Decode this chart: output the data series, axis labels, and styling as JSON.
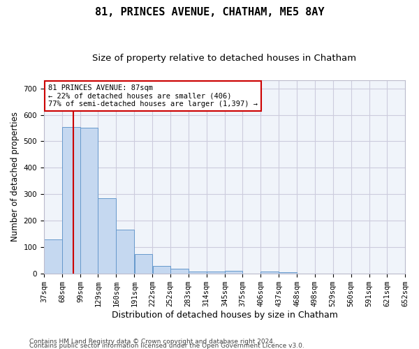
{
  "title": "81, PRINCES AVENUE, CHATHAM, ME5 8AY",
  "subtitle": "Size of property relative to detached houses in Chatham",
  "xlabel": "Distribution of detached houses by size in Chatham",
  "ylabel": "Number of detached properties",
  "footer_line1": "Contains HM Land Registry data © Crown copyright and database right 2024.",
  "footer_line2": "Contains public sector information licensed under the Open Government Licence v3.0.",
  "bar_edges": [
    37,
    68,
    99,
    129,
    160,
    191,
    222,
    252,
    283,
    314,
    345,
    375,
    406,
    437,
    468,
    498,
    529,
    560,
    591,
    621,
    652
  ],
  "bar_heights": [
    128,
    554,
    552,
    284,
    165,
    72,
    29,
    17,
    8,
    8,
    10,
    0,
    8,
    5,
    0,
    0,
    0,
    0,
    0,
    0
  ],
  "bar_color": "#c5d8f0",
  "bar_edge_color": "#6699cc",
  "property_size": 87,
  "vline_color": "#cc0000",
  "annotation_text": "81 PRINCES AVENUE: 87sqm\n← 22% of detached houses are smaller (406)\n77% of semi-detached houses are larger (1,397) →",
  "annotation_box_facecolor": "#ffffff",
  "annotation_border_color": "#cc0000",
  "ylim": [
    0,
    730
  ],
  "yticks": [
    0,
    100,
    200,
    300,
    400,
    500,
    600,
    700
  ],
  "grid_color": "#ccccdd",
  "bg_color": "#f0f4fa",
  "fig_bg_color": "#ffffff",
  "title_fontsize": 11,
  "subtitle_fontsize": 9.5,
  "xlabel_fontsize": 9,
  "ylabel_fontsize": 8.5,
  "tick_fontsize": 7.5,
  "annotation_fontsize": 7.5,
  "footer_fontsize": 6.5
}
